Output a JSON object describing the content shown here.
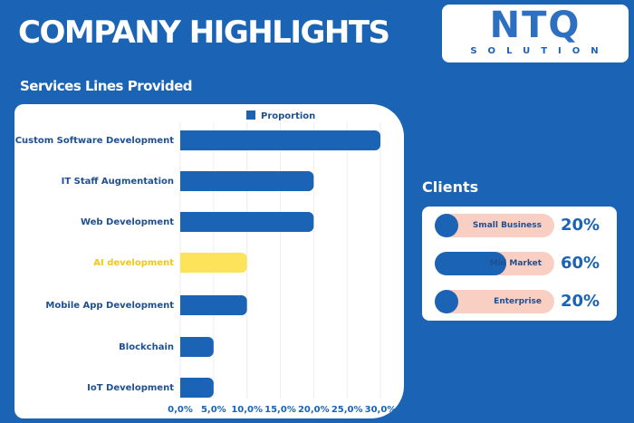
{
  "header": {
    "title": "COMPANY HIGHLIGHTS",
    "subtitle": "Services Lines Provided"
  },
  "logo": {
    "main": "NTQ",
    "sub": "SOLUTION"
  },
  "colors": {
    "background": "#1a63b5",
    "bar": "#1a63b5",
    "highlight": "#fde35a",
    "highlight_label": "#f5c518",
    "client_track": "#f9cfc4"
  },
  "chart_data": {
    "type": "bar",
    "orientation": "horizontal",
    "categories": [
      "Custom Software Development",
      "IT Staff Augmentation",
      "Web Development",
      "AI development",
      "Mobile App Development",
      "Blockchain",
      "IoT Development"
    ],
    "series": [
      {
        "name": "Proportion",
        "values": [
          30,
          20,
          20,
          10,
          10,
          5,
          5
        ]
      }
    ],
    "highlighted": "AI development",
    "xlim": [
      0,
      30
    ],
    "xticks": [
      "0,0%",
      "5,0%",
      "10,0%",
      "15,0%",
      "20,0%",
      "25,0%",
      "30,0%"
    ],
    "grid": true,
    "legend": "top"
  },
  "clients": {
    "title": "Clients",
    "items": [
      {
        "label": "Small Business",
        "value": "20%",
        "fraction": 0.2
      },
      {
        "label": "Mid Market",
        "value": "60%",
        "fraction": 0.6
      },
      {
        "label": "Enterprise",
        "value": "20%",
        "fraction": 0.2
      }
    ]
  }
}
